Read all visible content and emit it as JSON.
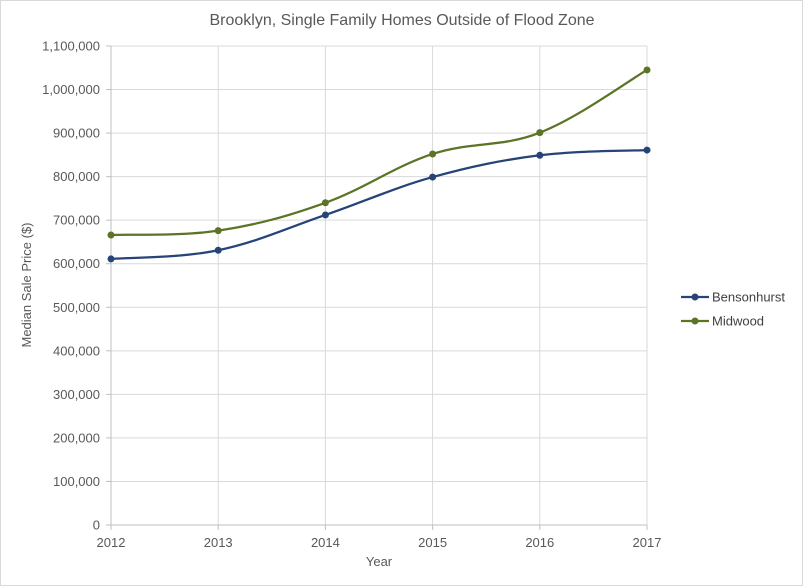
{
  "chart_data": {
    "type": "line",
    "title": "Brooklyn, Single Family Homes Outside of Flood Zone",
    "xlabel": "Year",
    "ylabel": "Median Sale Price ($)",
    "categories": [
      "2012",
      "2013",
      "2014",
      "2015",
      "2016",
      "2017"
    ],
    "ylim": [
      0,
      1100000
    ],
    "yticks": [
      0,
      100000,
      200000,
      300000,
      400000,
      500000,
      600000,
      700000,
      800000,
      900000,
      1000000,
      1100000
    ],
    "ytick_labels": [
      "0",
      "100,000",
      "200,000",
      "300,000",
      "400,000",
      "500,000",
      "600,000",
      "700,000",
      "800,000",
      "900,000",
      "1,000,000",
      "1,100,000"
    ],
    "grid": true,
    "legend_position": "right",
    "smooth": true,
    "series": [
      {
        "name": "Bensonhurst",
        "color": "#264478",
        "values": [
          611000,
          631000,
          712000,
          799000,
          849000,
          861000
        ]
      },
      {
        "name": "Midwood",
        "color": "#5b7425",
        "values": [
          666000,
          676000,
          740000,
          852000,
          901000,
          1045000
        ]
      }
    ]
  }
}
